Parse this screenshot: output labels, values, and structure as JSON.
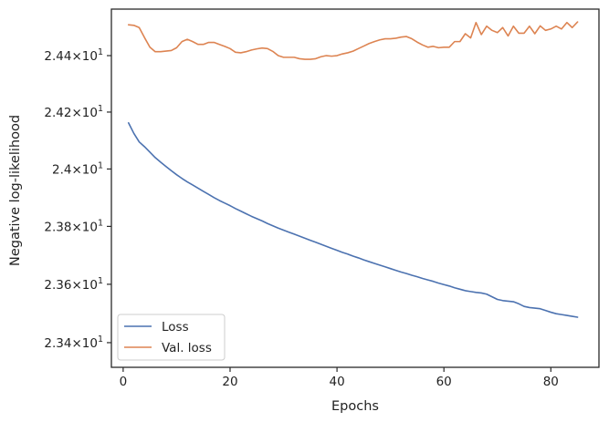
{
  "chart_data": {
    "type": "line",
    "title": "",
    "xlabel": "Epochs",
    "ylabel": "Negative log-likelihood",
    "xlim": [
      -2.2,
      89
    ],
    "ylim": [
      23.316,
      24.566
    ],
    "xticks": [
      0,
      20,
      40,
      60,
      80
    ],
    "xtick_labels": [
      "0",
      "20",
      "40",
      "60",
      "80"
    ],
    "yticks": [
      23.4,
      23.6,
      23.8,
      24.0,
      24.2,
      24.4
    ],
    "ytick_labels": [
      {
        "mant": "2.34",
        "base": "10",
        "exp": "1"
      },
      {
        "mant": "2.36",
        "base": "10",
        "exp": "1"
      },
      {
        "mant": "2.38",
        "base": "10",
        "exp": "1"
      },
      {
        "mant": "2.4",
        "base": "10",
        "exp": "1"
      },
      {
        "mant": "2.42",
        "base": "10",
        "exp": "1"
      },
      {
        "mant": "2.44",
        "base": "10",
        "exp": "1"
      }
    ],
    "y_scale": "log",
    "grid": false,
    "legend_position": "lower-left",
    "series": [
      {
        "name": "Loss",
        "color": "#4c72b0",
        "x": [
          1,
          2,
          3,
          4,
          5,
          6,
          7,
          8,
          9,
          10,
          11,
          12,
          13,
          14,
          15,
          16,
          17,
          18,
          19,
          20,
          21,
          22,
          23,
          24,
          25,
          26,
          27,
          28,
          29,
          30,
          31,
          32,
          33,
          34,
          35,
          36,
          37,
          38,
          39,
          40,
          41,
          42,
          43,
          44,
          45,
          46,
          47,
          48,
          49,
          50,
          51,
          52,
          53,
          54,
          55,
          56,
          57,
          58,
          59,
          60,
          61,
          62,
          63,
          64,
          65,
          66,
          67,
          68,
          69,
          70,
          71,
          72,
          73,
          74,
          75,
          76,
          77,
          78,
          79,
          80,
          81,
          82,
          83,
          84,
          85
        ],
        "values": [
          24.162,
          24.125,
          24.095,
          24.078,
          24.059,
          24.04,
          24.024,
          24.009,
          23.994,
          23.98,
          23.967,
          23.955,
          23.944,
          23.933,
          23.922,
          23.911,
          23.9,
          23.89,
          23.881,
          23.872,
          23.862,
          23.853,
          23.844,
          23.835,
          23.827,
          23.819,
          23.81,
          23.802,
          23.794,
          23.787,
          23.78,
          23.773,
          23.766,
          23.759,
          23.752,
          23.745,
          23.738,
          23.731,
          23.724,
          23.717,
          23.71,
          23.704,
          23.697,
          23.691,
          23.684,
          23.678,
          23.672,
          23.666,
          23.66,
          23.654,
          23.648,
          23.642,
          23.637,
          23.631,
          23.626,
          23.62,
          23.615,
          23.61,
          23.604,
          23.599,
          23.594,
          23.588,
          23.583,
          23.578,
          23.575,
          23.572,
          23.57,
          23.566,
          23.557,
          23.548,
          23.544,
          23.542,
          23.54,
          23.533,
          23.524,
          23.52,
          23.518,
          23.516,
          23.51,
          23.504,
          23.499,
          23.496,
          23.493,
          23.49,
          23.487
        ]
      },
      {
        "name": "Val. loss",
        "color": "#dd8452",
        "x": [
          1,
          2,
          3,
          4,
          5,
          6,
          7,
          8,
          9,
          10,
          11,
          12,
          13,
          14,
          15,
          16,
          17,
          18,
          19,
          20,
          21,
          22,
          23,
          24,
          25,
          26,
          27,
          28,
          29,
          30,
          31,
          32,
          33,
          34,
          35,
          36,
          37,
          38,
          39,
          40,
          41,
          42,
          43,
          44,
          45,
          46,
          47,
          48,
          49,
          50,
          51,
          52,
          53,
          54,
          55,
          56,
          57,
          58,
          59,
          60,
          61,
          62,
          63,
          64,
          65,
          66,
          67,
          68,
          69,
          70,
          71,
          72,
          73,
          74,
          75,
          76,
          77,
          78,
          79,
          80,
          81,
          82,
          83,
          84,
          85
        ],
        "values": [
          24.51,
          24.508,
          24.5,
          24.464,
          24.43,
          24.414,
          24.414,
          24.416,
          24.418,
          24.428,
          24.45,
          24.458,
          24.45,
          24.44,
          24.44,
          24.447,
          24.447,
          24.44,
          24.433,
          24.425,
          24.412,
          24.41,
          24.414,
          24.42,
          24.424,
          24.427,
          24.425,
          24.415,
          24.4,
          24.394,
          24.394,
          24.394,
          24.389,
          24.387,
          24.387,
          24.389,
          24.396,
          24.4,
          24.398,
          24.4,
          24.406,
          24.41,
          24.416,
          24.425,
          24.434,
          24.443,
          24.45,
          24.456,
          24.46,
          24.46,
          24.462,
          24.466,
          24.468,
          24.46,
          24.448,
          24.438,
          24.43,
          24.433,
          24.428,
          24.43,
          24.43,
          24.45,
          24.45,
          24.478,
          24.463,
          24.518,
          24.475,
          24.505,
          24.49,
          24.482,
          24.5,
          24.47,
          24.505,
          24.48,
          24.48,
          24.505,
          24.478,
          24.506,
          24.49,
          24.495,
          24.505,
          24.495,
          24.518,
          24.5,
          24.52
        ]
      }
    ]
  }
}
